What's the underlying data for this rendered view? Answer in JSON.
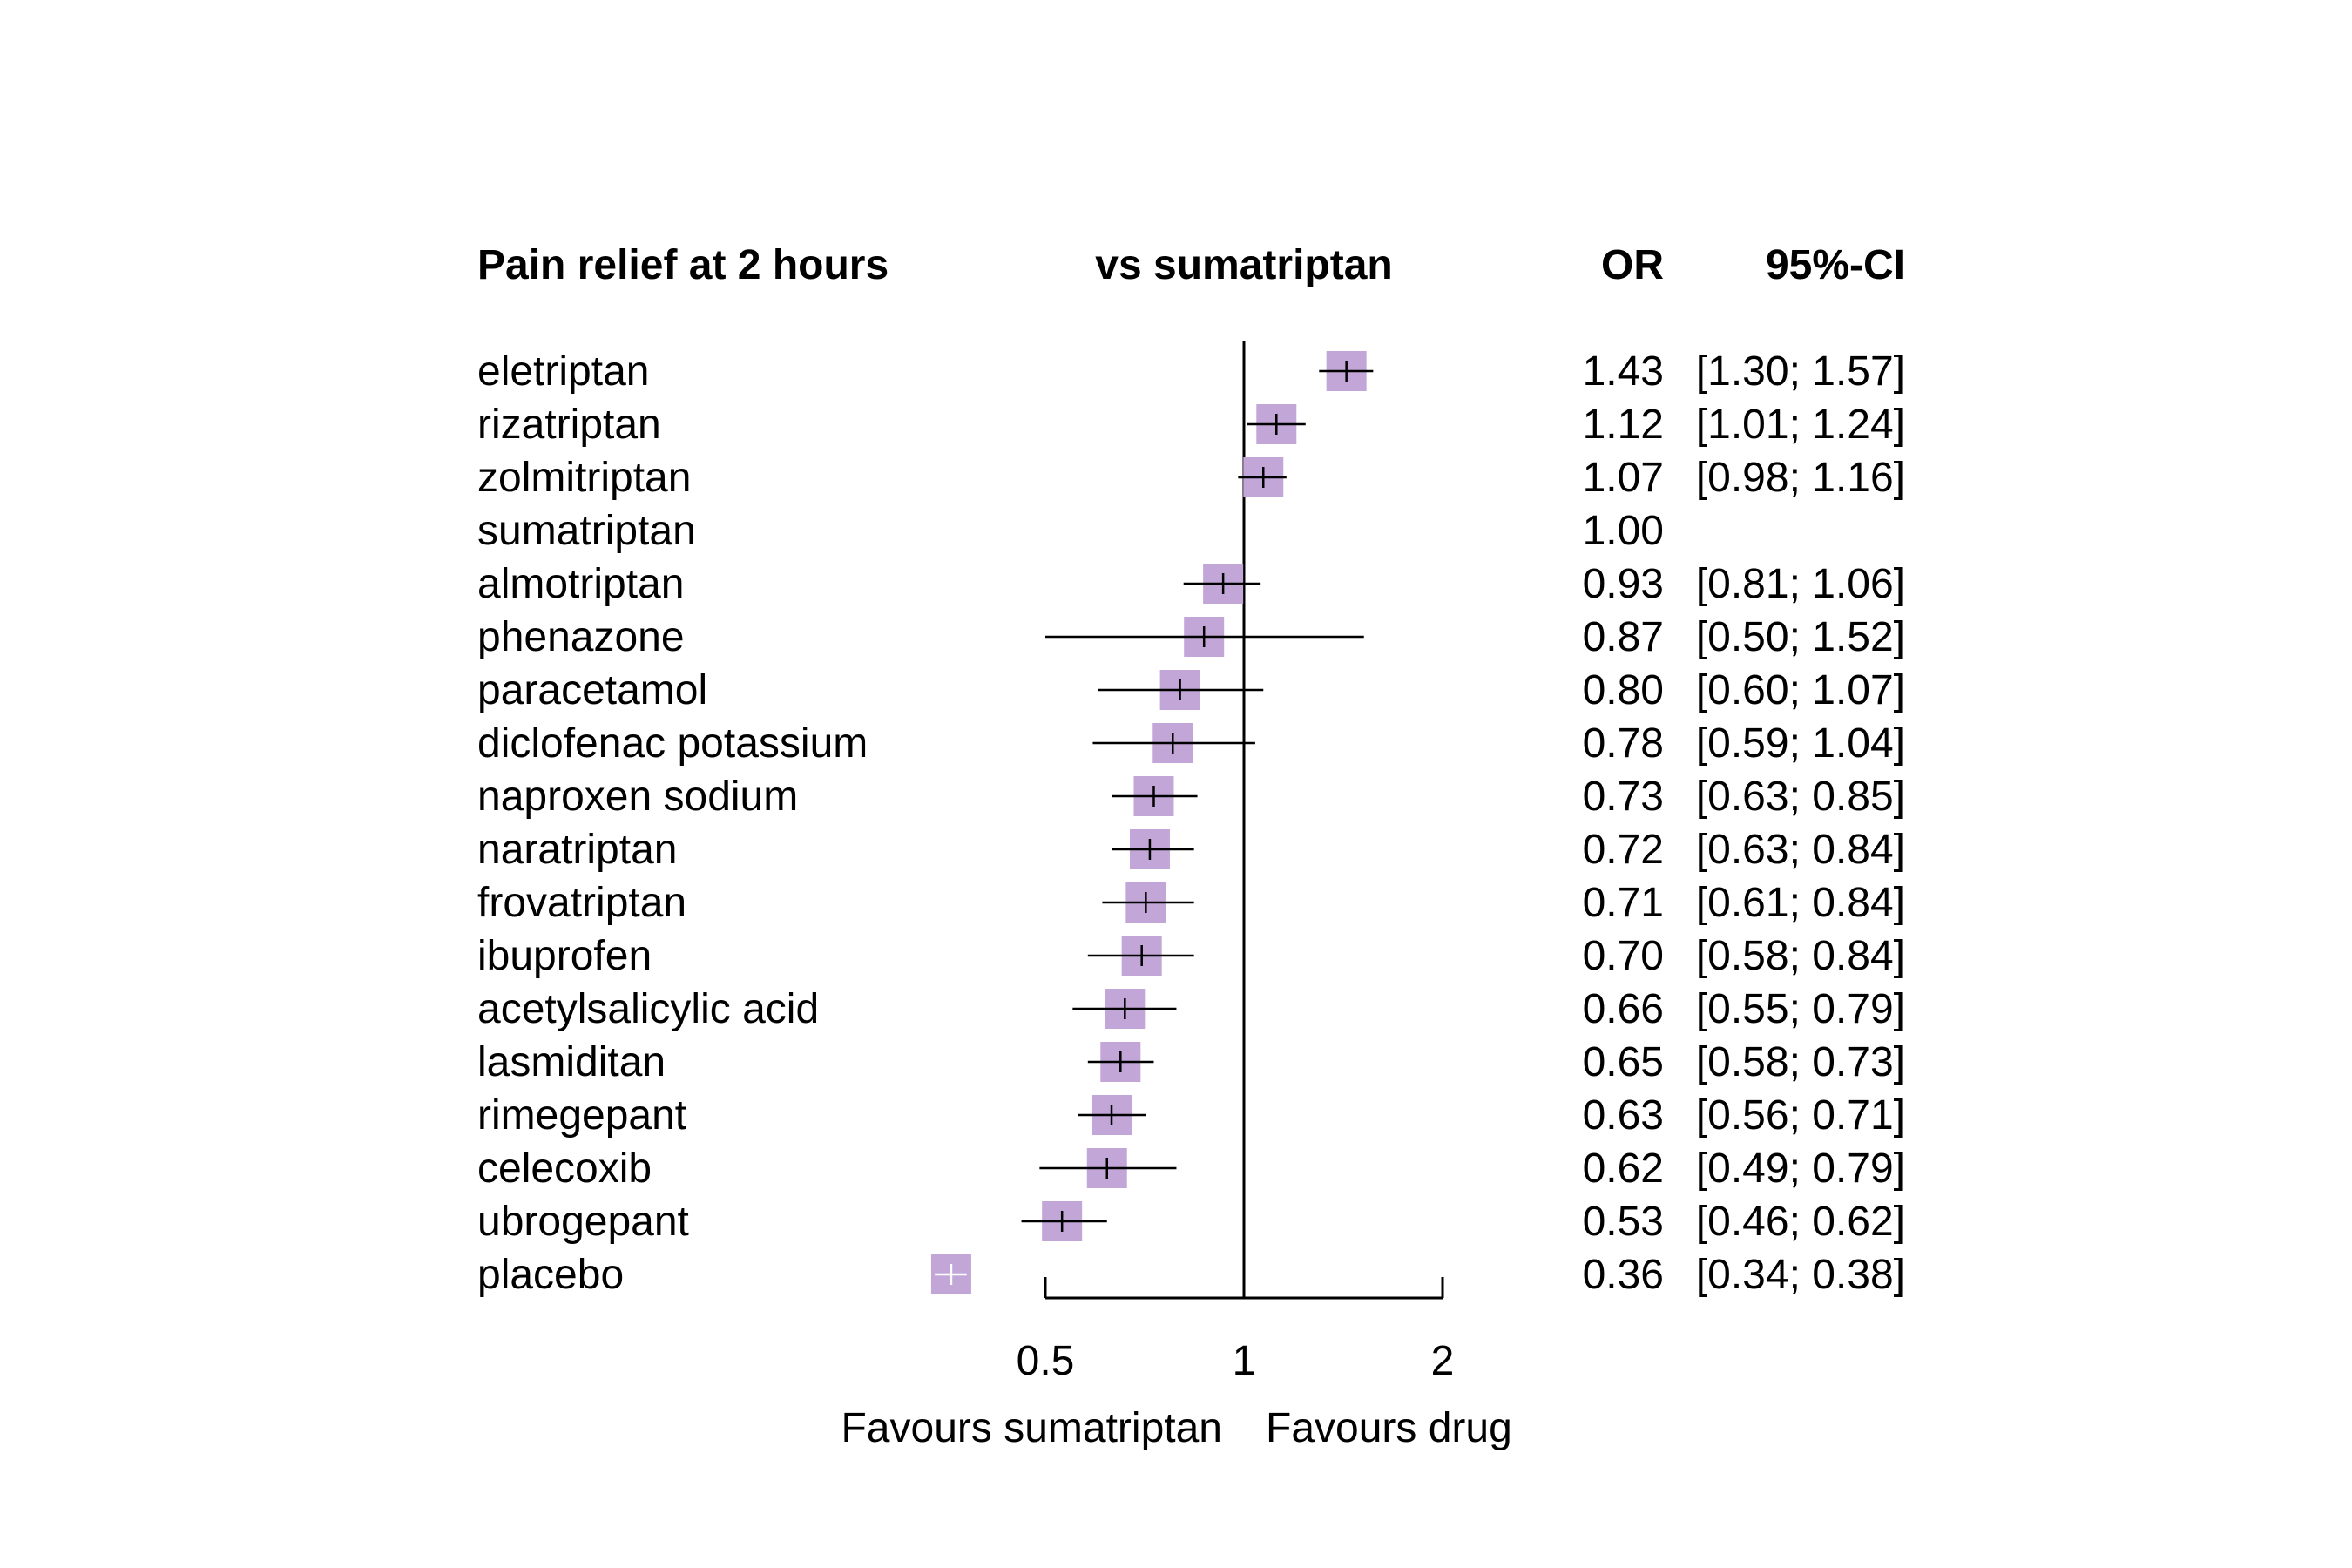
{
  "headers": {
    "title": "Pain relief at 2 hours",
    "comparison": "vs sumatriptan",
    "or": "OR",
    "ci": "95%-CI"
  },
  "axis": {
    "scale": "log",
    "range": [
      0.5,
      2
    ],
    "reference": 1,
    "ticks": [
      {
        "value": 0.5,
        "label": "0.5"
      },
      {
        "value": 1,
        "label": "1"
      },
      {
        "value": 2,
        "label": "2"
      }
    ],
    "favours_left": "Favours sumatriptan",
    "favours_right": "Favours drug"
  },
  "colors": {
    "square": "#c3a6d8",
    "line": "#000000",
    "placebo_tick": "#ffffff"
  },
  "chart_data": {
    "type": "forest",
    "scale": "log",
    "xlim": [
      0.5,
      2
    ],
    "rows": [
      {
        "name": "eletriptan",
        "or": 1.43,
        "lo": 1.3,
        "hi": 1.57,
        "or_text": "1.43",
        "ci_text": "[1.30; 1.57]"
      },
      {
        "name": "rizatriptan",
        "or": 1.12,
        "lo": 1.01,
        "hi": 1.24,
        "or_text": "1.12",
        "ci_text": "[1.01; 1.24]"
      },
      {
        "name": "zolmitriptan",
        "or": 1.07,
        "lo": 0.98,
        "hi": 1.16,
        "or_text": "1.07",
        "ci_text": "[0.98; 1.16]"
      },
      {
        "name": "sumatriptan",
        "or": 1.0,
        "lo": null,
        "hi": null,
        "or_text": "1.00",
        "ci_text": ""
      },
      {
        "name": "almotriptan",
        "or": 0.93,
        "lo": 0.81,
        "hi": 1.06,
        "or_text": "0.93",
        "ci_text": "[0.81; 1.06]"
      },
      {
        "name": "phenazone",
        "or": 0.87,
        "lo": 0.5,
        "hi": 1.52,
        "or_text": "0.87",
        "ci_text": "[0.50; 1.52]"
      },
      {
        "name": "paracetamol",
        "or": 0.8,
        "lo": 0.6,
        "hi": 1.07,
        "or_text": "0.80",
        "ci_text": "[0.60; 1.07]"
      },
      {
        "name": "diclofenac potassium",
        "or": 0.78,
        "lo": 0.59,
        "hi": 1.04,
        "or_text": "0.78",
        "ci_text": "[0.59; 1.04]"
      },
      {
        "name": "naproxen sodium",
        "or": 0.73,
        "lo": 0.63,
        "hi": 0.85,
        "or_text": "0.73",
        "ci_text": "[0.63; 0.85]"
      },
      {
        "name": "naratriptan",
        "or": 0.72,
        "lo": 0.63,
        "hi": 0.84,
        "or_text": "0.72",
        "ci_text": "[0.63; 0.84]"
      },
      {
        "name": "frovatriptan",
        "or": 0.71,
        "lo": 0.61,
        "hi": 0.84,
        "or_text": "0.71",
        "ci_text": "[0.61; 0.84]"
      },
      {
        "name": "ibuprofen",
        "or": 0.7,
        "lo": 0.58,
        "hi": 0.84,
        "or_text": "0.70",
        "ci_text": "[0.58; 0.84]"
      },
      {
        "name": "acetylsalicylic acid",
        "or": 0.66,
        "lo": 0.55,
        "hi": 0.79,
        "or_text": "0.66",
        "ci_text": "[0.55; 0.79]"
      },
      {
        "name": "lasmiditan",
        "or": 0.65,
        "lo": 0.58,
        "hi": 0.73,
        "or_text": "0.65",
        "ci_text": "[0.58; 0.73]"
      },
      {
        "name": "rimegepant",
        "or": 0.63,
        "lo": 0.56,
        "hi": 0.71,
        "or_text": "0.63",
        "ci_text": "[0.56; 0.71]"
      },
      {
        "name": "celecoxib",
        "or": 0.62,
        "lo": 0.49,
        "hi": 0.79,
        "or_text": "0.62",
        "ci_text": "[0.49; 0.79]"
      },
      {
        "name": "ubrogepant",
        "or": 0.53,
        "lo": 0.46,
        "hi": 0.62,
        "or_text": "0.53",
        "ci_text": "[0.46; 0.62]"
      },
      {
        "name": "placebo",
        "or": 0.36,
        "lo": 0.34,
        "hi": 0.38,
        "or_text": "0.36",
        "ci_text": "[0.34; 0.38]"
      }
    ]
  }
}
